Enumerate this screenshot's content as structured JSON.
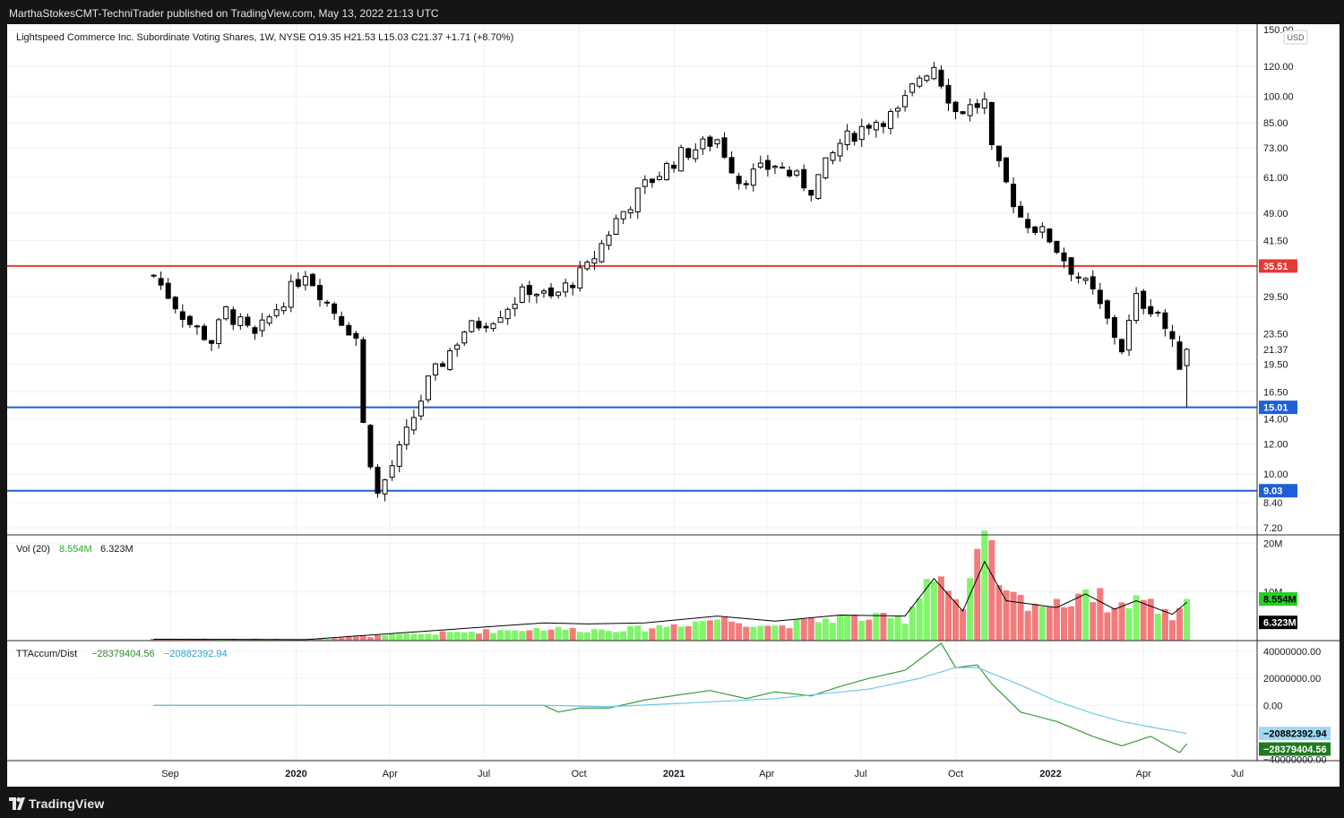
{
  "attribution": "MarthaStokesCMT-TechniTrader published on TradingView.com, May 13, 2022 21:13 UTC",
  "footer": {
    "brand": "TradingView"
  },
  "legend": {
    "main": "Lightspeed Commerce Inc. Subordinate Voting Shares, 1W, NYSE  O19.35  H21.53  L15.03  C21.37  +1.71 (+8.70%)",
    "vol_label": "Vol (20)",
    "vol_value": "8.554M",
    "vol_ma": "6.323M",
    "osc_label": "TTAccum/Dist",
    "osc_value": "−28379404.56",
    "osc_ma": "−20882392.94"
  },
  "currency": "USD",
  "colors": {
    "up_candle": "#ffffff",
    "down_candle": "#000000",
    "vol_up": "#7ff56a",
    "vol_down": "#f27c7c",
    "resistance": "#e53935",
    "support": "#1e5fd8",
    "osc_line": "#3a9b3a",
    "osc_signal": "#6ec6ea"
  },
  "chart_data": [
    {
      "type": "candlestick",
      "title": "Lightspeed Commerce Inc. Subordinate Voting Shares, 1W, NYSE",
      "scale": "log",
      "ylim": [
        6.9,
        155
      ],
      "y_ticks": [
        150,
        120,
        100,
        85,
        73,
        61,
        49,
        41.5,
        29.5,
        23.5,
        19.5,
        16.5,
        14,
        12,
        10,
        8.4,
        7.2
      ],
      "y_tick_labels": [
        "150.00",
        "120.00",
        "100.00",
        "85.00",
        "73.00",
        "61.00",
        "49.00",
        "41.50",
        "29.50",
        "23.50",
        "19.50",
        "16.50",
        "14.00",
        "12.00",
        "10.00",
        "8.40",
        "7.20"
      ],
      "x_tick_labels": [
        {
          "label": "Sep",
          "x": "2019-09-01"
        },
        {
          "label": "2020",
          "x": "2020-01-01"
        },
        {
          "label": "Apr",
          "x": "2020-04-01"
        },
        {
          "label": "Jul",
          "x": "2020-07-01"
        },
        {
          "label": "Oct",
          "x": "2020-10-01"
        },
        {
          "label": "2021",
          "x": "2021-01-01"
        },
        {
          "label": "Apr",
          "x": "2021-04-01"
        },
        {
          "label": "Jul",
          "x": "2021-07-01"
        },
        {
          "label": "Oct",
          "x": "2021-10-01"
        },
        {
          "label": "2022",
          "x": "2022-01-01"
        },
        {
          "label": "Apr",
          "x": "2022-04-01"
        },
        {
          "label": "Jul",
          "x": "2022-07-01"
        }
      ],
      "horizontal_lines": [
        {
          "value": 35.51,
          "label": "35.51",
          "color": "#e53935"
        },
        {
          "value": 15.01,
          "label": "15.01",
          "color": "#1e5fd8"
        },
        {
          "value": 9.03,
          "label": "9.03",
          "color": "#1e5fd8"
        }
      ],
      "last_price": {
        "value": 21.37,
        "label": "21.37"
      },
      "close_path": [
        {
          "x": "2019-08-16",
          "y": 33.5
        },
        {
          "x": "2019-09-20",
          "y": 25.0
        },
        {
          "x": "2019-10-11",
          "y": 22.5
        },
        {
          "x": "2019-10-25",
          "y": 27.0
        },
        {
          "x": "2019-11-22",
          "y": 23.0
        },
        {
          "x": "2019-12-13",
          "y": 27.5
        },
        {
          "x": "2020-01-10",
          "y": 34.5
        },
        {
          "x": "2020-01-31",
          "y": 28.5
        },
        {
          "x": "2020-02-28",
          "y": 23.0
        },
        {
          "x": "2020-03-06",
          "y": 13.5
        },
        {
          "x": "2020-03-20",
          "y": 8.8
        },
        {
          "x": "2020-04-10",
          "y": 11.5
        },
        {
          "x": "2020-05-08",
          "y": 17.5
        },
        {
          "x": "2020-06-12",
          "y": 24.0
        },
        {
          "x": "2020-07-10",
          "y": 26.0
        },
        {
          "x": "2020-08-14",
          "y": 31.0
        },
        {
          "x": "2020-09-04",
          "y": 29.0
        },
        {
          "x": "2020-10-09",
          "y": 35.0
        },
        {
          "x": "2020-11-06",
          "y": 47.0
        },
        {
          "x": "2020-12-04",
          "y": 58.0
        },
        {
          "x": "2021-01-08",
          "y": 70.0
        },
        {
          "x": "2021-02-12",
          "y": 77.0
        },
        {
          "x": "2021-03-05",
          "y": 60.0
        },
        {
          "x": "2021-04-09",
          "y": 66.0
        },
        {
          "x": "2021-05-14",
          "y": 57.0
        },
        {
          "x": "2021-06-11",
          "y": 75.0
        },
        {
          "x": "2021-07-09",
          "y": 85.0
        },
        {
          "x": "2021-08-06",
          "y": 90.0
        },
        {
          "x": "2021-08-27",
          "y": 113.0
        },
        {
          "x": "2021-09-10",
          "y": 121.0
        },
        {
          "x": "2021-10-01",
          "y": 91.0
        },
        {
          "x": "2021-10-29",
          "y": 96.0
        },
        {
          "x": "2021-11-05",
          "y": 71.0
        },
        {
          "x": "2021-12-03",
          "y": 48.0
        },
        {
          "x": "2021-12-31",
          "y": 42.0
        },
        {
          "x": "2022-01-21",
          "y": 35.0
        },
        {
          "x": "2022-02-11",
          "y": 30.0
        },
        {
          "x": "2022-03-11",
          "y": 21.5
        },
        {
          "x": "2022-03-25",
          "y": 29.0
        },
        {
          "x": "2022-04-15",
          "y": 27.0
        },
        {
          "x": "2022-05-06",
          "y": 19.66
        },
        {
          "x": "2022-05-13",
          "y": 21.37
        }
      ],
      "last_bar": {
        "open": 19.35,
        "high": 21.53,
        "low": 15.03,
        "close": 21.37,
        "change": 1.71,
        "change_pct": 8.7
      }
    },
    {
      "type": "bar",
      "title": "Vol (20)",
      "ylim": [
        0,
        21000000
      ],
      "y_ticks": [
        20000000,
        10000000
      ],
      "y_tick_labels": [
        "20M",
        "10M"
      ],
      "last": {
        "value": 8554000,
        "label": "8.554M"
      },
      "ma": {
        "value": 6323000,
        "label": "6.323M"
      },
      "points": [
        {
          "x": "2019-08-16",
          "y": 400000
        },
        {
          "x": "2020-01-10",
          "y": 300000
        },
        {
          "x": "2020-08-28",
          "y": 2500000
        },
        {
          "x": "2020-10-09",
          "y": 2200000
        },
        {
          "x": "2020-12-04",
          "y": 2500000
        },
        {
          "x": "2021-02-12",
          "y": 4500000
        },
        {
          "x": "2021-04-09",
          "y": 3000000
        },
        {
          "x": "2021-06-11",
          "y": 4800000
        },
        {
          "x": "2021-08-13",
          "y": 4500000
        },
        {
          "x": "2021-09-10",
          "y": 15500000
        },
        {
          "x": "2021-10-08",
          "y": 6000000
        },
        {
          "x": "2021-10-29",
          "y": 20500000
        },
        {
          "x": "2021-11-19",
          "y": 9000000
        },
        {
          "x": "2022-01-07",
          "y": 7000000
        },
        {
          "x": "2022-02-04",
          "y": 11000000
        },
        {
          "x": "2022-03-04",
          "y": 6500000
        },
        {
          "x": "2022-03-25",
          "y": 9000000
        },
        {
          "x": "2022-04-29",
          "y": 5000000
        },
        {
          "x": "2022-05-13",
          "y": 8554000
        }
      ]
    },
    {
      "type": "line",
      "title": "TTAccum/Dist",
      "ylim": [
        -41000000,
        48000000
      ],
      "y_ticks": [
        40000000,
        20000000,
        0,
        -40000000
      ],
      "y_tick_labels": [
        "40000000.00",
        "20000000.00",
        "0.00",
        "−40000000.00"
      ],
      "series": [
        {
          "name": "TTAccum/Dist",
          "color": "#3a9b3a",
          "last_label": "−28379404.56",
          "points": [
            {
              "x": "2019-08-16",
              "y": 0
            },
            {
              "x": "2020-08-28",
              "y": 0
            },
            {
              "x": "2020-09-11",
              "y": -5000000
            },
            {
              "x": "2020-10-02",
              "y": -2000000
            },
            {
              "x": "2020-10-30",
              "y": -2000000
            },
            {
              "x": "2020-12-04",
              "y": 4000000
            },
            {
              "x": "2021-01-08",
              "y": 8000000
            },
            {
              "x": "2021-02-05",
              "y": 11000000
            },
            {
              "x": "2021-03-12",
              "y": 5000000
            },
            {
              "x": "2021-04-09",
              "y": 10000000
            },
            {
              "x": "2021-05-14",
              "y": 7000000
            },
            {
              "x": "2021-06-11",
              "y": 14000000
            },
            {
              "x": "2021-07-09",
              "y": 20000000
            },
            {
              "x": "2021-08-13",
              "y": 26000000
            },
            {
              "x": "2021-09-17",
              "y": 46000000
            },
            {
              "x": "2021-10-01",
              "y": 28000000
            },
            {
              "x": "2021-10-22",
              "y": 30000000
            },
            {
              "x": "2021-11-05",
              "y": 16000000
            },
            {
              "x": "2021-12-03",
              "y": -5000000
            },
            {
              "x": "2022-01-07",
              "y": -12000000
            },
            {
              "x": "2022-02-11",
              "y": -23000000
            },
            {
              "x": "2022-03-11",
              "y": -30000000
            },
            {
              "x": "2022-04-08",
              "y": -23000000
            },
            {
              "x": "2022-05-06",
              "y": -35000000
            },
            {
              "x": "2022-05-13",
              "y": -28379404.56
            }
          ]
        },
        {
          "name": "Signal",
          "color": "#6ec6ea",
          "last_label": "−20882392.94",
          "points": [
            {
              "x": "2019-08-16",
              "y": 0
            },
            {
              "x": "2020-08-28",
              "y": 0
            },
            {
              "x": "2020-10-30",
              "y": -1000000
            },
            {
              "x": "2021-01-08",
              "y": 1500000
            },
            {
              "x": "2021-04-09",
              "y": 5000000
            },
            {
              "x": "2021-07-09",
              "y": 12000000
            },
            {
              "x": "2021-08-27",
              "y": 20000000
            },
            {
              "x": "2021-10-01",
              "y": 28000000
            },
            {
              "x": "2021-10-22",
              "y": 28000000
            },
            {
              "x": "2021-12-03",
              "y": 15000000
            },
            {
              "x": "2022-01-07",
              "y": 3000000
            },
            {
              "x": "2022-02-11",
              "y": -6000000
            },
            {
              "x": "2022-03-11",
              "y": -12000000
            },
            {
              "x": "2022-04-08",
              "y": -16000000
            },
            {
              "x": "2022-05-13",
              "y": -20882392.94
            }
          ]
        }
      ]
    }
  ]
}
